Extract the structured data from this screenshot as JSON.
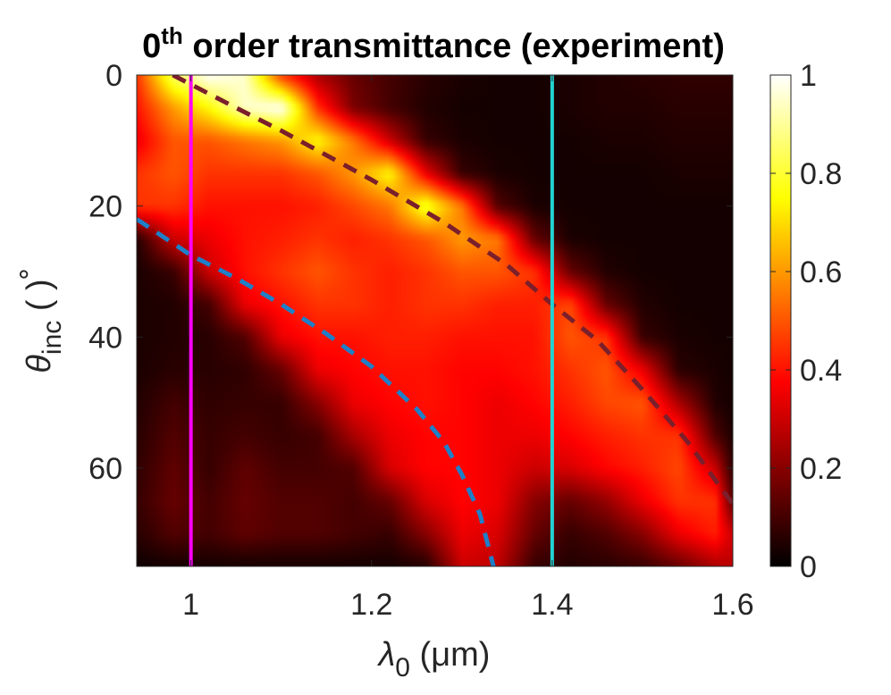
{
  "chart_data": {
    "type": "heatmap",
    "title": {
      "base": "0",
      "sup": "th",
      "rest": " order transmittance (experiment)"
    },
    "xlabel": {
      "symbol": "λ",
      "sub": "0",
      "rest": " (μm)"
    },
    "ylabel": {
      "symbol": "θ",
      "sub": "inc",
      "rest": " ( )",
      "degree_mark": "∘"
    },
    "xlim": [
      0.94,
      1.6
    ],
    "ylim": [
      0,
      75
    ],
    "y_reversed": true,
    "x_ticks": [
      1,
      1.2,
      1.4,
      1.6
    ],
    "x_tick_labels": [
      "1",
      "1.2",
      "1.4",
      "1.6"
    ],
    "y_ticks": [
      0,
      20,
      40,
      60
    ],
    "y_tick_labels": [
      "0",
      "20",
      "40",
      "60"
    ],
    "colorbar": {
      "colormap": "hot",
      "range": [
        0,
        1
      ],
      "ticks": [
        0,
        0.2,
        0.4,
        0.6,
        0.8,
        1
      ],
      "tick_labels": [
        "0",
        "0.2",
        "0.4",
        "0.6",
        "0.8",
        "1"
      ]
    },
    "vertical_lines": [
      {
        "name": "magenta-line",
        "x": 1.0,
        "color": "#ff00ff"
      },
      {
        "name": "cyan-line",
        "x": 1.4,
        "color": "#22d3d3"
      }
    ],
    "dashed_curves": [
      {
        "name": "blue-dashed-curve",
        "color": "#1f7fc8",
        "points": [
          [
            0.94,
            22
          ],
          [
            1.0,
            27.5
          ],
          [
            1.05,
            31
          ],
          [
            1.1,
            35
          ],
          [
            1.15,
            39.5
          ],
          [
            1.2,
            44.5
          ],
          [
            1.25,
            51
          ],
          [
            1.28,
            56
          ],
          [
            1.3,
            61
          ],
          [
            1.32,
            67
          ],
          [
            1.335,
            75
          ]
        ]
      },
      {
        "name": "maroon-dashed-curve",
        "color": "#7a1f2b",
        "points": [
          [
            0.98,
            0
          ],
          [
            1.05,
            5
          ],
          [
            1.1,
            8.5
          ],
          [
            1.2,
            16
          ],
          [
            1.28,
            22.5
          ],
          [
            1.35,
            29
          ],
          [
            1.4,
            35
          ],
          [
            1.45,
            40.5
          ],
          [
            1.5,
            48
          ],
          [
            1.55,
            56
          ],
          [
            1.6,
            65.5
          ]
        ]
      }
    ],
    "heatmap": {
      "description_grid": "transmittance values T(lambda, theta), rows = theta, cols = lambda",
      "lambda": [
        0.94,
        0.98,
        1.02,
        1.06,
        1.1,
        1.14,
        1.18,
        1.22,
        1.26,
        1.3,
        1.34,
        1.38,
        1.42,
        1.46,
        1.5,
        1.54,
        1.58,
        1.6
      ],
      "theta": [
        0,
        5,
        10,
        15,
        20,
        25,
        30,
        35,
        40,
        45,
        50,
        55,
        60,
        65,
        70,
        75
      ],
      "values": [
        [
          0.45,
          0.85,
          1.0,
          0.95,
          0.45,
          0.25,
          0.15,
          0.1,
          0.06,
          0.04,
          0.03,
          0.03,
          0.04,
          0.05,
          0.06,
          0.07,
          0.07,
          0.07
        ],
        [
          0.4,
          0.6,
          0.75,
          0.95,
          1.0,
          0.45,
          0.18,
          0.1,
          0.05,
          0.03,
          0.03,
          0.03,
          0.04,
          0.05,
          0.05,
          0.06,
          0.06,
          0.06
        ],
        [
          0.35,
          0.5,
          0.5,
          0.55,
          0.6,
          0.75,
          0.55,
          0.3,
          0.08,
          0.04,
          0.03,
          0.03,
          0.03,
          0.04,
          0.04,
          0.05,
          0.05,
          0.05
        ],
        [
          0.45,
          0.5,
          0.45,
          0.45,
          0.45,
          0.5,
          0.6,
          0.75,
          0.35,
          0.08,
          0.04,
          0.03,
          0.03,
          0.03,
          0.03,
          0.04,
          0.04,
          0.04
        ],
        [
          0.45,
          0.45,
          0.4,
          0.4,
          0.4,
          0.42,
          0.48,
          0.55,
          0.8,
          0.55,
          0.12,
          0.04,
          0.03,
          0.03,
          0.03,
          0.03,
          0.03,
          0.03
        ],
        [
          0.05,
          0.3,
          0.35,
          0.4,
          0.42,
          0.45,
          0.42,
          0.45,
          0.5,
          0.6,
          0.55,
          0.15,
          0.04,
          0.03,
          0.03,
          0.03,
          0.03,
          0.03
        ],
        [
          0.04,
          0.08,
          0.3,
          0.4,
          0.45,
          0.5,
          0.45,
          0.42,
          0.45,
          0.5,
          0.5,
          0.45,
          0.15,
          0.05,
          0.03,
          0.03,
          0.03,
          0.03
        ],
        [
          0.04,
          0.05,
          0.1,
          0.35,
          0.4,
          0.45,
          0.45,
          0.42,
          0.45,
          0.45,
          0.42,
          0.42,
          0.48,
          0.15,
          0.05,
          0.03,
          0.03,
          0.03
        ],
        [
          0.04,
          0.05,
          0.06,
          0.12,
          0.35,
          0.4,
          0.4,
          0.42,
          0.42,
          0.4,
          0.4,
          0.4,
          0.5,
          0.45,
          0.08,
          0.04,
          0.03,
          0.03
        ],
        [
          0.04,
          0.06,
          0.06,
          0.07,
          0.15,
          0.35,
          0.38,
          0.4,
          0.4,
          0.38,
          0.38,
          0.4,
          0.45,
          0.5,
          0.35,
          0.06,
          0.04,
          0.03
        ],
        [
          0.05,
          0.1,
          0.07,
          0.08,
          0.08,
          0.2,
          0.35,
          0.38,
          0.4,
          0.38,
          0.35,
          0.38,
          0.42,
          0.48,
          0.5,
          0.25,
          0.05,
          0.03
        ],
        [
          0.06,
          0.12,
          0.08,
          0.1,
          0.08,
          0.1,
          0.25,
          0.35,
          0.38,
          0.38,
          0.35,
          0.35,
          0.38,
          0.42,
          0.45,
          0.45,
          0.12,
          0.04
        ],
        [
          0.07,
          0.14,
          0.08,
          0.14,
          0.1,
          0.1,
          0.12,
          0.32,
          0.38,
          0.38,
          0.35,
          0.3,
          0.32,
          0.38,
          0.42,
          0.48,
          0.3,
          0.06
        ],
        [
          0.08,
          0.15,
          0.1,
          0.15,
          0.12,
          0.12,
          0.1,
          0.15,
          0.32,
          0.38,
          0.35,
          0.2,
          0.15,
          0.22,
          0.35,
          0.45,
          0.45,
          0.12
        ],
        [
          0.06,
          0.12,
          0.1,
          0.14,
          0.12,
          0.12,
          0.1,
          0.08,
          0.2,
          0.35,
          0.32,
          0.15,
          0.08,
          0.12,
          0.2,
          0.35,
          0.42,
          0.3
        ],
        [
          0.02,
          0.03,
          0.03,
          0.03,
          0.03,
          0.03,
          0.03,
          0.03,
          0.05,
          0.3,
          0.28,
          0.08,
          0.05,
          0.06,
          0.08,
          0.15,
          0.25,
          0.28
        ]
      ]
    }
  }
}
